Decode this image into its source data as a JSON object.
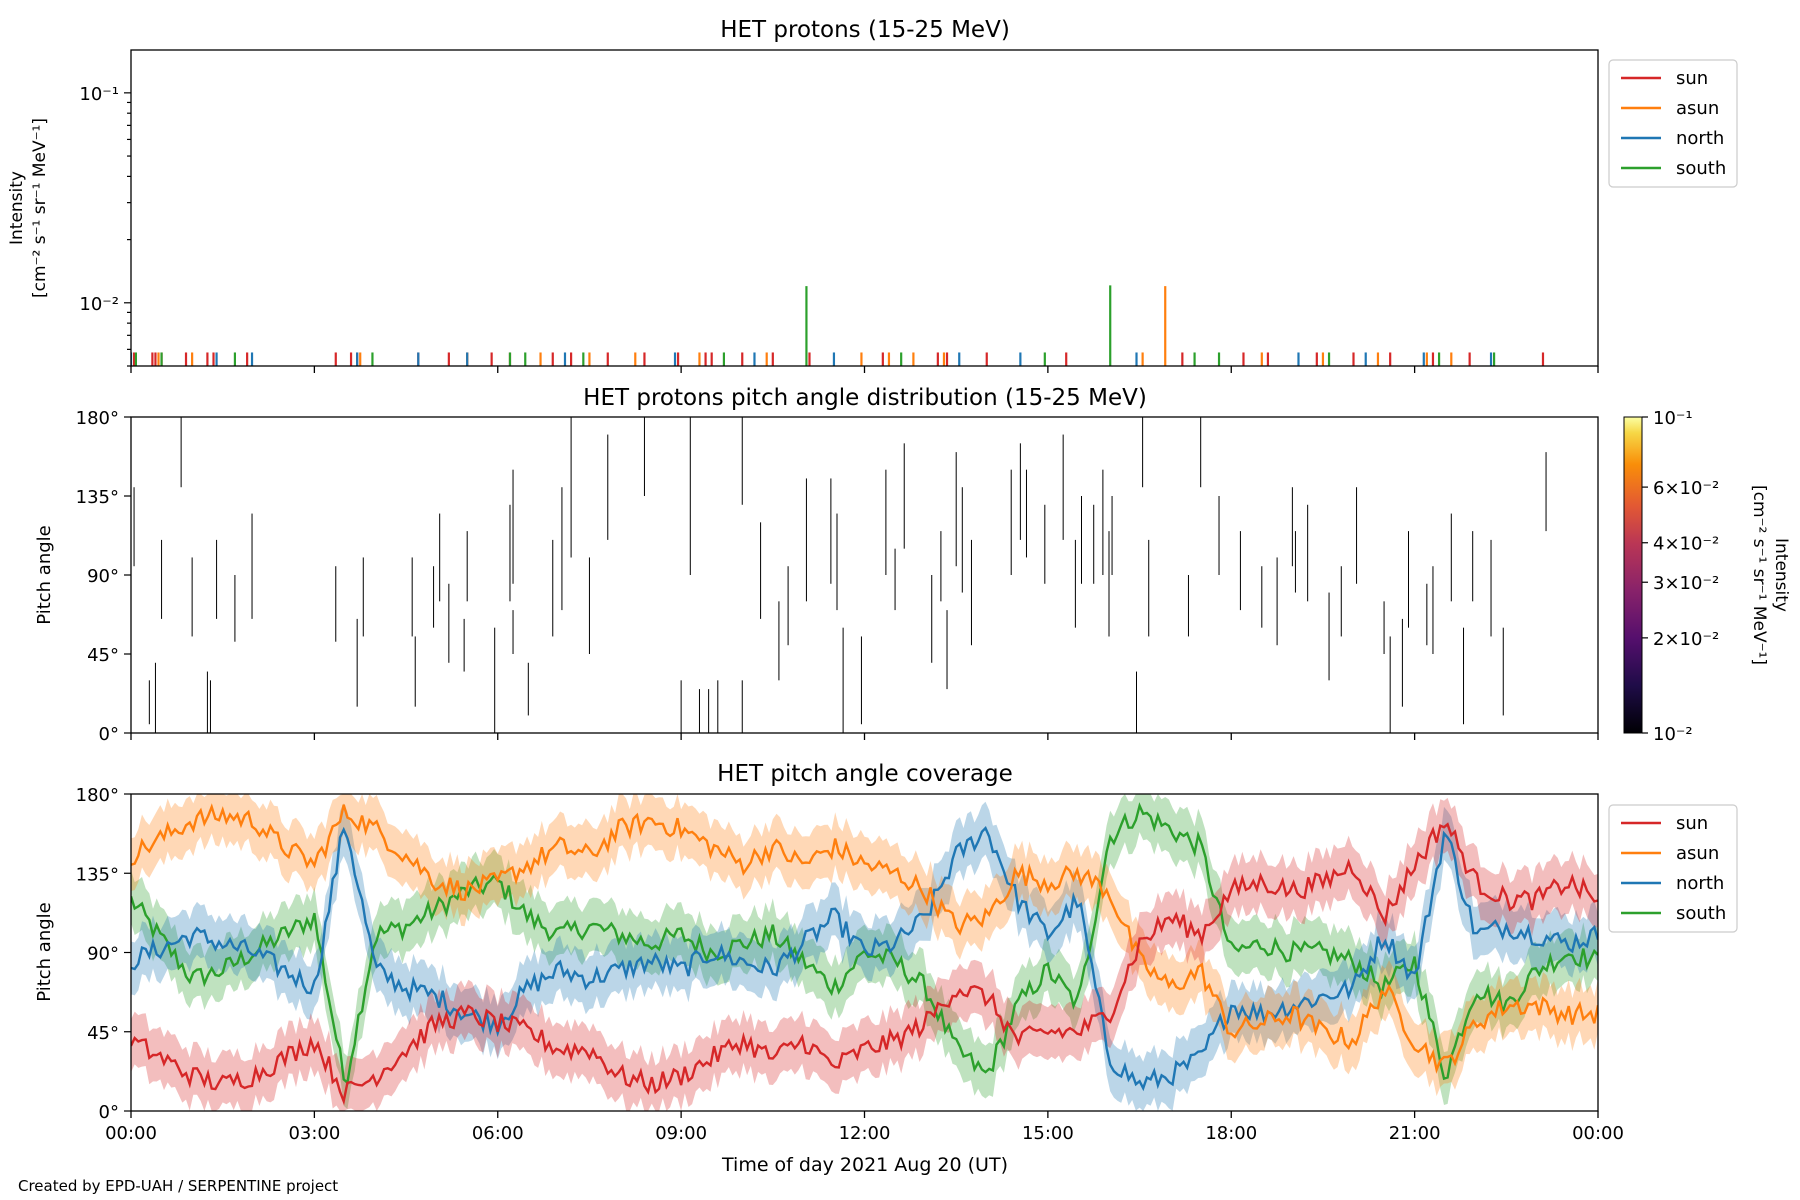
{
  "footer": "Created by EPD-UAH / SERPENTINE project",
  "xlabel": "Time of day 2021 Aug 20 (UT)",
  "x_ticks": [
    "00:00",
    "03:00",
    "06:00",
    "09:00",
    "12:00",
    "15:00",
    "18:00",
    "21:00",
    "00:00"
  ],
  "colors": {
    "sun": "#d62728",
    "asun": "#ff7f0e",
    "north": "#1f77b4",
    "south": "#2ca02c"
  },
  "legend": [
    "sun",
    "asun",
    "north",
    "south"
  ],
  "chart_data": [
    {
      "type": "line",
      "title": "HET protons (15-25 MeV)",
      "ylabel_lines": [
        "Intensity",
        "[cm⁻² s⁻¹ sr⁻¹ MeV⁻¹]"
      ],
      "yscale": "log",
      "y_ticks": [
        "10⁻¹",
        "10⁻²"
      ],
      "legend_placement": "outside right, top",
      "x_range_hours": [
        0,
        24
      ],
      "series": [
        {
          "name": "sun",
          "baseline": 0.0058,
          "x_hours": [
            0.05,
            0.35,
            0.4,
            0.5,
            0.9,
            1.25,
            1.35,
            1.9,
            3.35,
            3.6,
            3.7,
            4.7,
            5.2,
            5.5,
            5.9,
            6.2,
            6.9,
            7.2,
            7.8,
            8.4,
            8.95,
            9.4,
            9.5,
            10.0,
            10.5,
            11.1,
            12.3,
            13.2,
            13.35,
            14.0,
            15.3,
            17.2,
            18.2,
            18.6,
            19.4,
            20.0,
            20.6,
            21.3,
            21.9,
            23.1
          ],
          "values": [
            0.0058,
            0.0058,
            0.0058,
            0.0058,
            0.0058,
            0.0058,
            0.0058,
            0.0058,
            0.0058,
            0.0058,
            0.0058,
            0.0058,
            0.0058,
            0.0058,
            0.0058,
            0.0058,
            0.0058,
            0.0058,
            0.0058,
            0.0058,
            0.0058,
            0.0058,
            0.0058,
            0.0058,
            0.0058,
            0.0058,
            0.0058,
            0.0058,
            0.0058,
            0.0058,
            0.0058,
            0.0058,
            0.0058,
            0.0058,
            0.0058,
            0.0058,
            0.0058,
            0.0058,
            0.0058,
            0.0058
          ]
        },
        {
          "name": "asun",
          "baseline": 0.0058,
          "x_hours": [
            0.45,
            1.0,
            3.75,
            5.5,
            6.7,
            7.5,
            8.25,
            9.3,
            10.4,
            11.95,
            12.4,
            12.8,
            13.3,
            16.55,
            16.92,
            18.5,
            19.5,
            20.4,
            21.2,
            21.6
          ],
          "values": [
            0.0058,
            0.0058,
            0.0058,
            0.0058,
            0.0058,
            0.0058,
            0.0058,
            0.0058,
            0.0058,
            0.0058,
            0.0058,
            0.0058,
            0.0058,
            0.0058,
            0.012,
            0.0058,
            0.0058,
            0.0058,
            0.0058,
            0.0058
          ]
        },
        {
          "name": "north",
          "baseline": 0.0058,
          "x_hours": [
            0.0,
            1.4,
            1.98,
            3.7,
            4.7,
            5.5,
            7.1,
            8.9,
            10.2,
            11.5,
            13.55,
            14.55,
            16.45,
            19.1,
            20.2,
            21.15,
            22.25
          ],
          "values": [
            0.0058,
            0.0058,
            0.0058,
            0.0058,
            0.0058,
            0.0058,
            0.0058,
            0.0058,
            0.0058,
            0.0058,
            0.0058,
            0.0058,
            0.0058,
            0.0058,
            0.0058,
            0.0058,
            0.0058
          ]
        },
        {
          "name": "south",
          "baseline": 0.0058,
          "x_hours": [
            0.08,
            0.5,
            1.7,
            3.95,
            6.2,
            6.45,
            7.4,
            9.7,
            11.05,
            12.6,
            14.95,
            16.02,
            17.4,
            17.8,
            19.6,
            21.4,
            22.3
          ],
          "values": [
            0.0058,
            0.0058,
            0.0058,
            0.0058,
            0.0058,
            0.0058,
            0.0058,
            0.0058,
            0.012,
            0.0058,
            0.0058,
            0.0121,
            0.0058,
            0.0058,
            0.0058,
            0.0058,
            0.0058
          ]
        }
      ]
    },
    {
      "type": "heatmap",
      "title": "HET protons pitch angle distribution (15-25 MeV)",
      "ylabel": "Pitch angle",
      "y_ticks": [
        "0°",
        "45°",
        "90°",
        "135°",
        "180°"
      ],
      "ylim": [
        0,
        180
      ],
      "colorbar": {
        "label_lines": [
          "Intensity",
          "[cm⁻² s⁻¹ sr⁻¹ MeV⁻¹]"
        ],
        "scale": "log",
        "range": [
          0.01,
          0.1
        ],
        "ticks": [
          {
            "value": 0.1,
            "label": "10⁻¹"
          },
          {
            "value": 0.06,
            "label": "6×10⁻²"
          },
          {
            "value": 0.04,
            "label": "4×10⁻²"
          },
          {
            "value": 0.03,
            "label": "3×10⁻²"
          },
          {
            "value": 0.02,
            "label": "2×10⁻²"
          },
          {
            "value": 0.01,
            "label": "10⁻²"
          }
        ]
      },
      "segments_note": "thin vertical segments: [time_hours, pitch_low, pitch_high]",
      "segments": [
        [
          0.05,
          95,
          140
        ],
        [
          0.3,
          5,
          30
        ],
        [
          0.4,
          0,
          40
        ],
        [
          0.5,
          65,
          110
        ],
        [
          0.82,
          140,
          180
        ],
        [
          1.0,
          55,
          100
        ],
        [
          1.25,
          0,
          35
        ],
        [
          1.3,
          0,
          30
        ],
        [
          1.4,
          65,
          110
        ],
        [
          1.7,
          52,
          90
        ],
        [
          1.98,
          65,
          125
        ],
        [
          3.35,
          52,
          95
        ],
        [
          3.7,
          15,
          65
        ],
        [
          3.8,
          55,
          100
        ],
        [
          4.6,
          55,
          100
        ],
        [
          4.65,
          15,
          55
        ],
        [
          4.95,
          60,
          95
        ],
        [
          5.05,
          75,
          125
        ],
        [
          5.2,
          40,
          85
        ],
        [
          5.45,
          35,
          65
        ],
        [
          5.5,
          75,
          115
        ],
        [
          5.95,
          0,
          60
        ],
        [
          6.2,
          75,
          130
        ],
        [
          6.25,
          85,
          150
        ],
        [
          6.25,
          45,
          70
        ],
        [
          6.5,
          10,
          40
        ],
        [
          6.9,
          55,
          110
        ],
        [
          7.05,
          70,
          140
        ],
        [
          7.2,
          100,
          180
        ],
        [
          7.5,
          45,
          100
        ],
        [
          7.8,
          110,
          170
        ],
        [
          8.4,
          135,
          180
        ],
        [
          9.0,
          0,
          30
        ],
        [
          9.15,
          90,
          180
        ],
        [
          9.3,
          0,
          25
        ],
        [
          9.45,
          0,
          25
        ],
        [
          9.6,
          0,
          30
        ],
        [
          10.0,
          0,
          30
        ],
        [
          10.0,
          130,
          180
        ],
        [
          10.3,
          65,
          120
        ],
        [
          10.6,
          30,
          75
        ],
        [
          10.75,
          50,
          95
        ],
        [
          11.05,
          75,
          145
        ],
        [
          11.45,
          85,
          145
        ],
        [
          11.55,
          70,
          125
        ],
        [
          11.65,
          0,
          60
        ],
        [
          11.95,
          5,
          55
        ],
        [
          12.35,
          90,
          150
        ],
        [
          12.5,
          70,
          105
        ],
        [
          12.65,
          105,
          165
        ],
        [
          13.1,
          40,
          90
        ],
        [
          13.25,
          75,
          115
        ],
        [
          13.35,
          25,
          70
        ],
        [
          13.5,
          95,
          160
        ],
        [
          13.6,
          80,
          140
        ],
        [
          13.75,
          50,
          110
        ],
        [
          14.4,
          90,
          150
        ],
        [
          14.55,
          110,
          165
        ],
        [
          14.65,
          100,
          150
        ],
        [
          14.95,
          85,
          130
        ],
        [
          15.25,
          110,
          170
        ],
        [
          15.45,
          60,
          110
        ],
        [
          15.55,
          85,
          135
        ],
        [
          15.75,
          85,
          130
        ],
        [
          15.9,
          90,
          150
        ],
        [
          16.0,
          55,
          115
        ],
        [
          16.05,
          90,
          135
        ],
        [
          16.45,
          0,
          35
        ],
        [
          16.55,
          140,
          180
        ],
        [
          16.65,
          55,
          110
        ],
        [
          17.3,
          55,
          90
        ],
        [
          17.5,
          140,
          180
        ],
        [
          17.8,
          90,
          135
        ],
        [
          18.15,
          70,
          115
        ],
        [
          18.5,
          60,
          95
        ],
        [
          18.75,
          50,
          100
        ],
        [
          19.0,
          95,
          140
        ],
        [
          19.05,
          80,
          115
        ],
        [
          19.25,
          75,
          130
        ],
        [
          19.6,
          30,
          80
        ],
        [
          19.8,
          55,
          95
        ],
        [
          20.05,
          85,
          140
        ],
        [
          20.5,
          45,
          75
        ],
        [
          20.6,
          0,
          55
        ],
        [
          20.8,
          15,
          65
        ],
        [
          20.9,
          60,
          115
        ],
        [
          21.2,
          50,
          85
        ],
        [
          21.3,
          45,
          95
        ],
        [
          21.6,
          75,
          125
        ],
        [
          21.8,
          5,
          60
        ],
        [
          21.95,
          75,
          115
        ],
        [
          22.25,
          55,
          110
        ],
        [
          22.45,
          10,
          60
        ],
        [
          23.15,
          115,
          160
        ]
      ]
    },
    {
      "type": "line",
      "title": "HET pitch angle coverage",
      "ylabel": "Pitch angle",
      "y_ticks": [
        "0°",
        "45°",
        "90°",
        "135°",
        "180°"
      ],
      "ylim": [
        0,
        180
      ],
      "legend_placement": "outside right, top",
      "shaded_band": "±15° around each line",
      "series": [
        {
          "name": "sun",
          "x_hours": [
            0,
            1,
            1.5,
            2,
            2.5,
            3,
            3.5,
            4,
            4.5,
            5,
            5.5,
            6,
            6.5,
            7,
            7.5,
            8,
            8.5,
            9,
            9.5,
            10,
            10.5,
            11,
            11.5,
            12,
            12.5,
            13,
            13.5,
            14,
            14.5,
            15,
            15.5,
            16,
            16.5,
            17,
            17.5,
            18,
            18.5,
            19,
            19.5,
            20,
            20.5,
            21,
            21.5,
            22,
            22.5,
            23,
            23.5,
            24
          ],
          "values": [
            40,
            20,
            15,
            20,
            30,
            40,
            10,
            20,
            35,
            50,
            55,
            50,
            45,
            35,
            35,
            20,
            15,
            20,
            30,
            40,
            30,
            40,
            25,
            35,
            40,
            50,
            70,
            65,
            40,
            45,
            45,
            55,
            95,
            110,
            100,
            125,
            130,
            125,
            130,
            140,
            110,
            140,
            165,
            130,
            120,
            120,
            130,
            120
          ]
        },
        {
          "name": "asun",
          "x_hours": [
            0,
            1,
            1.5,
            2,
            2.5,
            3,
            3.5,
            4,
            4.5,
            5,
            5.5,
            6,
            6.5,
            7,
            7.5,
            8,
            8.5,
            9,
            9.5,
            10,
            10.5,
            11,
            11.5,
            12,
            12.5,
            13,
            13.5,
            14,
            14.5,
            15,
            15.5,
            16,
            16.5,
            17,
            17.5,
            18,
            18.5,
            19,
            19.5,
            20,
            20.5,
            21,
            21.5,
            22,
            22.5,
            23,
            23.5,
            24
          ],
          "values": [
            145,
            165,
            168,
            165,
            150,
            140,
            170,
            160,
            145,
            130,
            125,
            130,
            140,
            150,
            145,
            160,
            165,
            160,
            150,
            140,
            150,
            140,
            150,
            140,
            135,
            125,
            105,
            110,
            135,
            130,
            135,
            125,
            85,
            70,
            80,
            45,
            50,
            55,
            45,
            40,
            70,
            40,
            25,
            50,
            60,
            60,
            55,
            55
          ]
        },
        {
          "name": "north",
          "x_hours": [
            0,
            1,
            1.5,
            2,
            2.5,
            3,
            3.5,
            4,
            4.5,
            5,
            5.5,
            6,
            6.5,
            7,
            7.5,
            8,
            8.5,
            9,
            9.5,
            10,
            10.5,
            11,
            11.5,
            12,
            12.5,
            13,
            13.5,
            14,
            14.5,
            15,
            15.5,
            16,
            16.5,
            17,
            17.5,
            18,
            18.5,
            19,
            19.5,
            20,
            20.5,
            21,
            21.5,
            22,
            22.5,
            23,
            23.5,
            24
          ],
          "values": [
            85,
            100,
            95,
            90,
            80,
            70,
            165,
            80,
            70,
            65,
            55,
            50,
            70,
            80,
            75,
            80,
            85,
            80,
            90,
            85,
            80,
            95,
            110,
            90,
            95,
            110,
            145,
            160,
            120,
            100,
            120,
            30,
            15,
            20,
            30,
            60,
            55,
            60,
            65,
            70,
            100,
            75,
            160,
            100,
            105,
            100,
            95,
            100
          ]
        },
        {
          "name": "south",
          "x_hours": [
            0,
            1,
            1.5,
            2,
            2.5,
            3,
            3.5,
            4,
            4.5,
            5,
            5.5,
            6,
            6.5,
            7,
            7.5,
            8,
            8.5,
            9,
            9.5,
            10,
            10.5,
            11,
            11.5,
            12,
            12.5,
            13,
            13.5,
            14,
            14.5,
            15,
            15.5,
            16,
            16.5,
            17,
            17.5,
            18,
            18.5,
            19,
            19.5,
            20,
            20.5,
            21,
            21.5,
            22,
            22.5,
            23,
            23.5,
            24
          ],
          "values": [
            120,
            75,
            80,
            90,
            100,
            110,
            15,
            100,
            105,
            115,
            125,
            130,
            110,
            100,
            105,
            100,
            95,
            100,
            90,
            95,
            100,
            85,
            70,
            90,
            85,
            70,
            35,
            20,
            60,
            80,
            60,
            155,
            170,
            160,
            150,
            90,
            95,
            90,
            90,
            85,
            70,
            85,
            20,
            70,
            60,
            80,
            90,
            85
          ]
        }
      ]
    }
  ]
}
